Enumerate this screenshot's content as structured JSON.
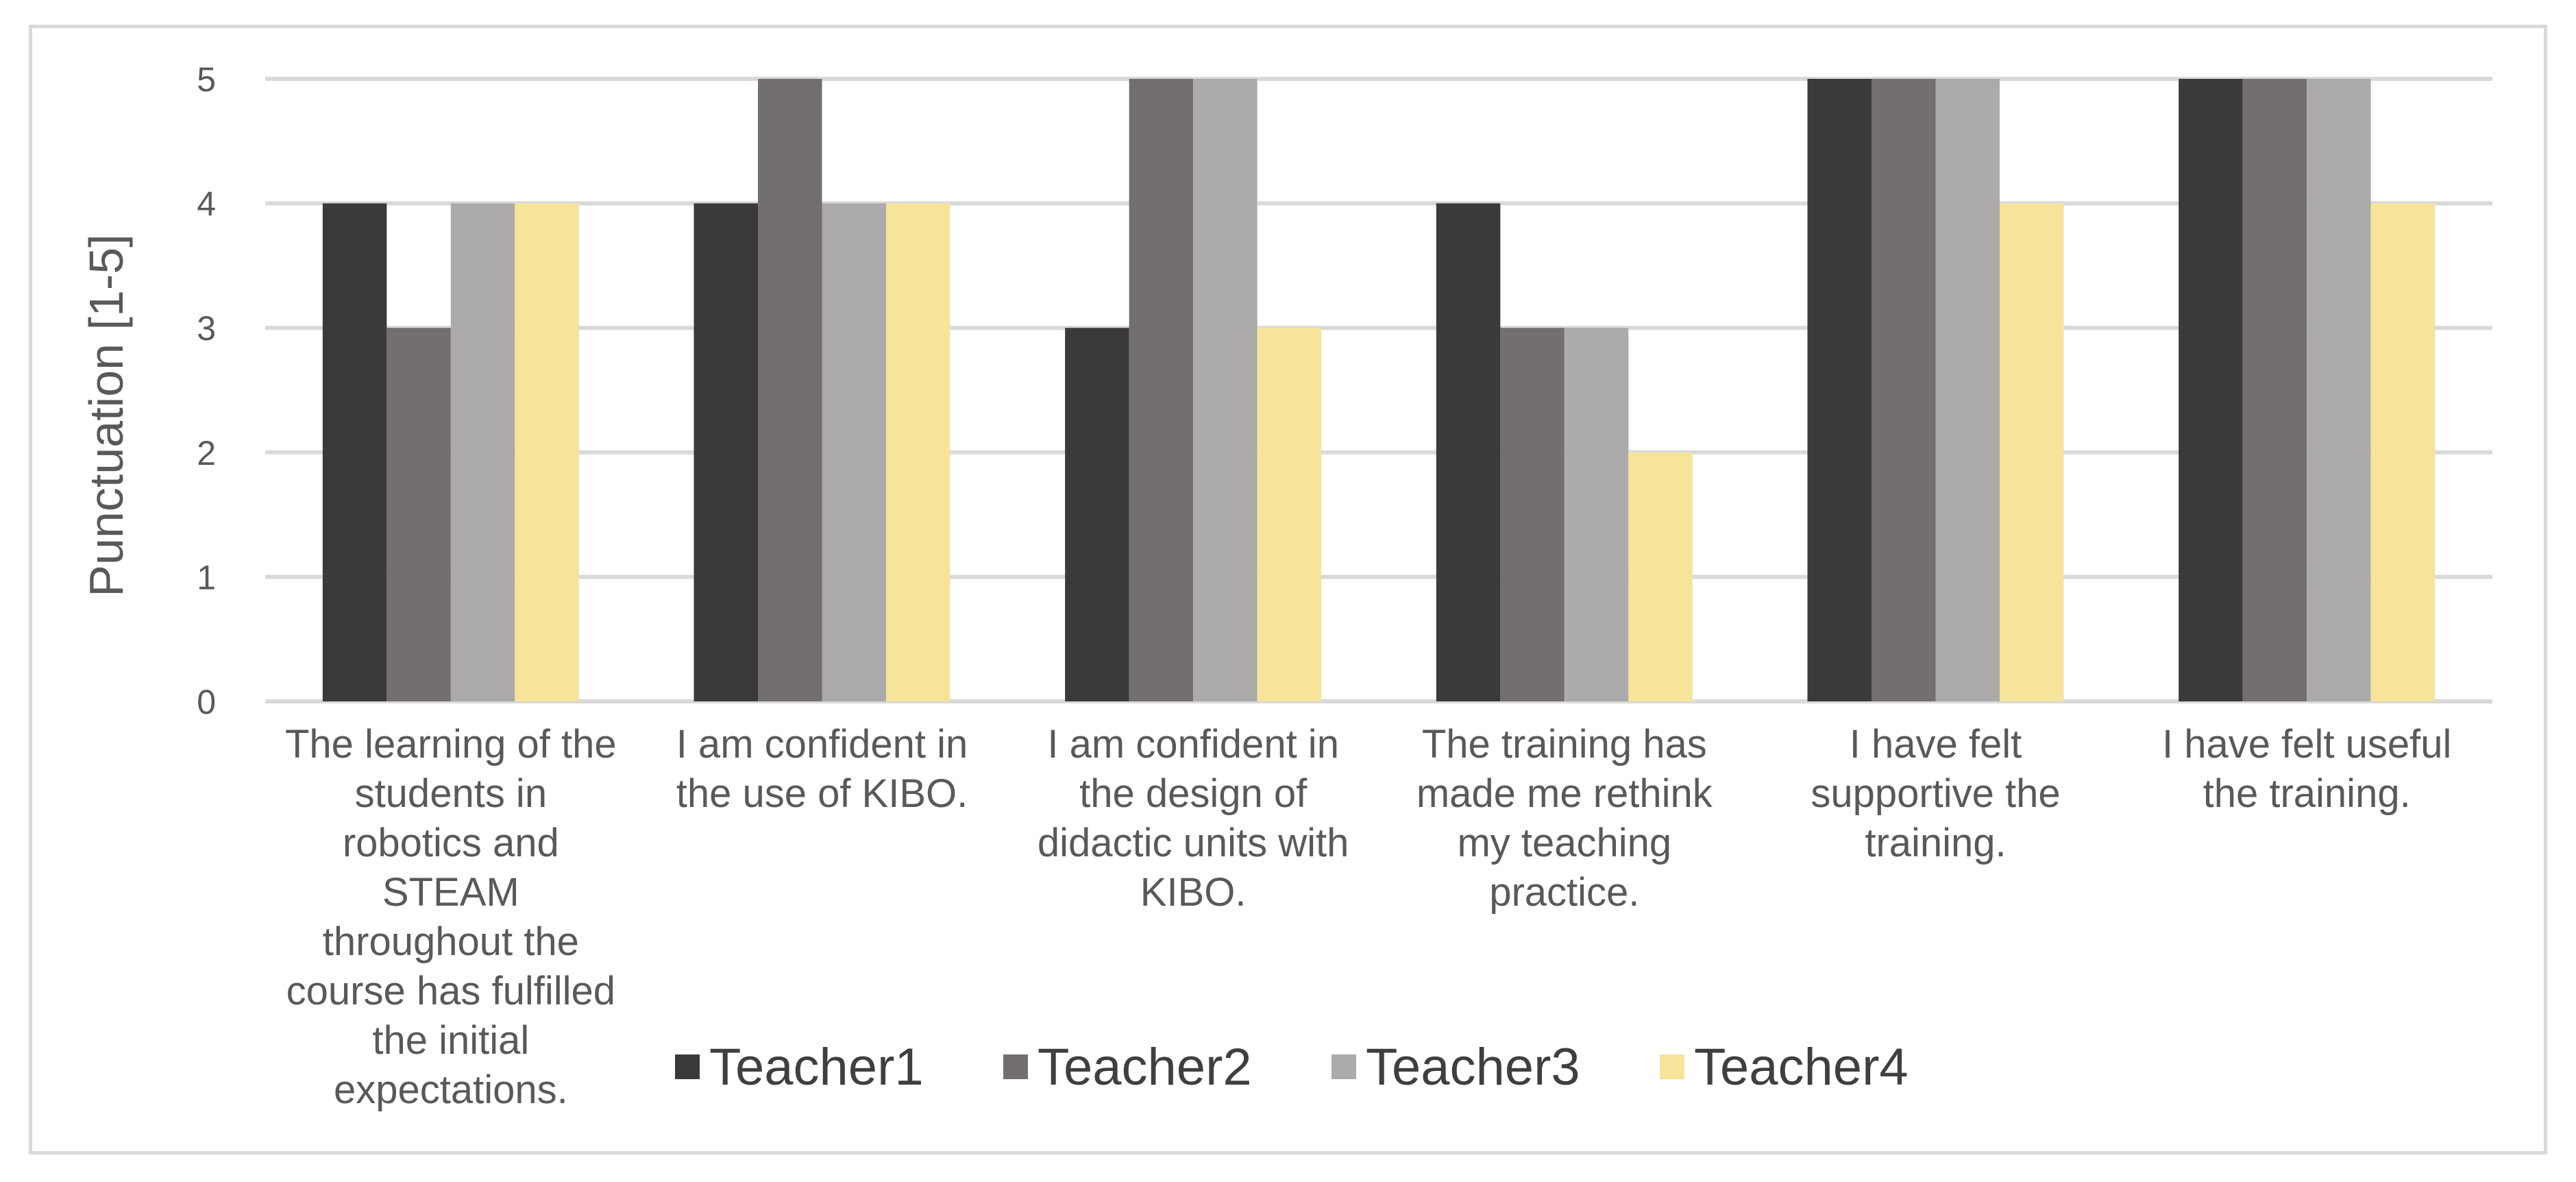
{
  "chart_data": {
    "type": "bar",
    "title": "",
    "xlabel": "",
    "ylabel": "Punctuation [1-5]",
    "ylim": [
      0,
      5
    ],
    "yticks": [
      "0",
      "1",
      "2",
      "3",
      "4",
      "5"
    ],
    "grid": true,
    "legend_position": "bottom",
    "categories": [
      [
        "The learning of the",
        "students in",
        "robotics and",
        "STEAM",
        "throughout the",
        "course has fulfilled",
        "the initial",
        "expectations."
      ],
      [
        "I am confident in",
        "the use of KIBO."
      ],
      [
        "I am confident in",
        "the design of",
        "didactic units with",
        "KIBO."
      ],
      [
        "The training has",
        "made me rethink",
        "my teaching",
        "practice."
      ],
      [
        "I have felt",
        "supportive the",
        "training."
      ],
      [
        "I have felt useful",
        "the training."
      ]
    ],
    "series": [
      {
        "name": "Teacher1",
        "color": "#3b3a3b",
        "values": [
          4,
          4,
          3,
          4,
          5,
          5
        ]
      },
      {
        "name": "Teacher2",
        "color": "#736f6e",
        "values": [
          3,
          5,
          5,
          3,
          5,
          5
        ]
      },
      {
        "name": "Teacher3",
        "color": "#acaaab",
        "values": [
          4,
          4,
          5,
          3,
          5,
          5
        ]
      },
      {
        "name": "Teacher4",
        "color": "#f5e499",
        "values": [
          4,
          4,
          3,
          2,
          4,
          4
        ]
      }
    ]
  }
}
